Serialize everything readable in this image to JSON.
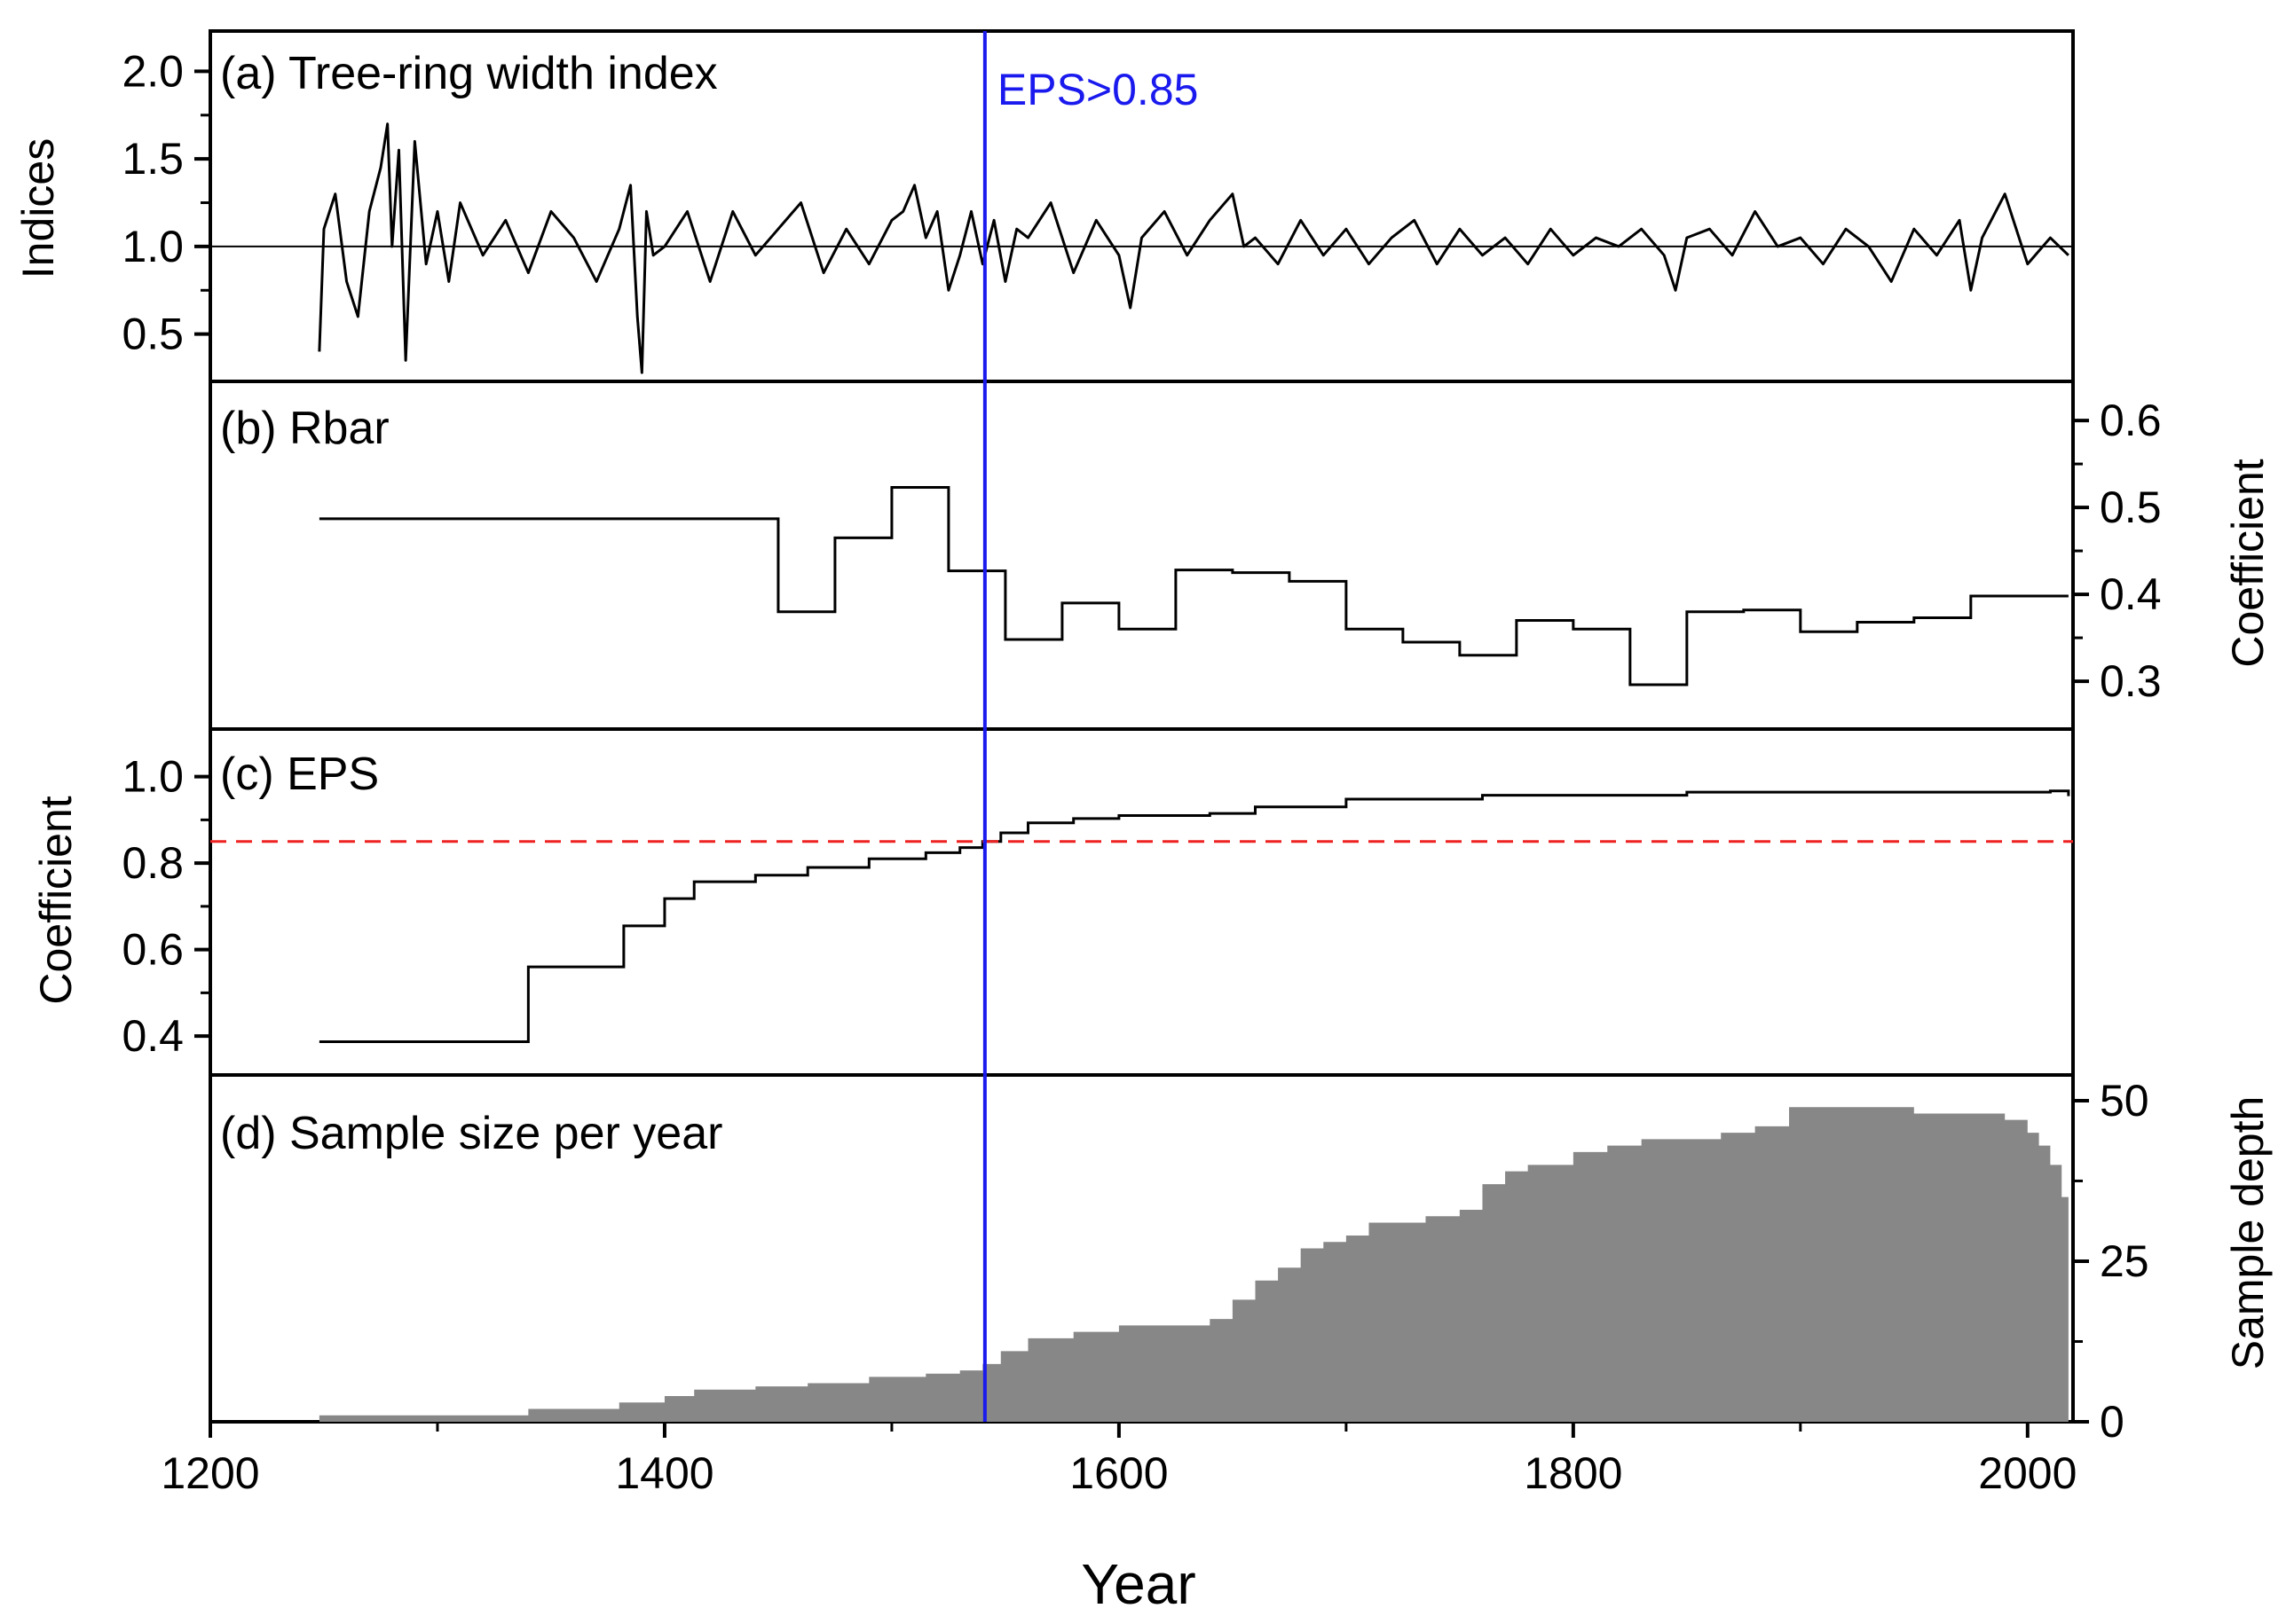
{
  "x_axis": {
    "title": "Year",
    "ticks": [
      "1200",
      "1400",
      "1600",
      "1800",
      "2000"
    ]
  },
  "eps_marker": {
    "year": 1541,
    "label": "EPS>0.85",
    "color": "#1a1aee"
  },
  "panels": {
    "a": {
      "label": "(a) Tree-ring width index",
      "ylabel": "Indices",
      "ticks": [
        "0.5",
        "1.0",
        "1.5",
        "2.0"
      ]
    },
    "b": {
      "label": "(b) Rbar",
      "ylabel": "Coefficient",
      "ticks": [
        "0.3",
        "0.4",
        "0.5",
        "0.6"
      ]
    },
    "c": {
      "label": "(c) EPS",
      "ylabel": "Coefficient",
      "ticks": [
        "0.4",
        "0.6",
        "0.8",
        "1.0"
      ]
    },
    "d": {
      "label": "(d) Sample size per year",
      "ylabel": "Sample depth",
      "ticks": [
        "0",
        "25",
        "50"
      ]
    }
  },
  "chart_data": [
    {
      "type": "line",
      "panel": "a",
      "title": "(a) Tree-ring width index",
      "ylabel": "Indices",
      "xlabel": "Year",
      "xlim": [
        1200,
        2020
      ],
      "ylim": [
        0.23,
        2.23
      ],
      "reference_line": 1.0,
      "line_color": "#000000",
      "x": [
        1248,
        1250,
        1255,
        1260,
        1265,
        1270,
        1275,
        1278,
        1280,
        1283,
        1286,
        1290,
        1295,
        1300,
        1305,
        1310,
        1320,
        1330,
        1340,
        1350,
        1360,
        1370,
        1380,
        1385,
        1388,
        1390,
        1392,
        1395,
        1400,
        1410,
        1420,
        1430,
        1440,
        1450,
        1460,
        1470,
        1480,
        1490,
        1500,
        1505,
        1510,
        1515,
        1520,
        1525,
        1530,
        1535,
        1540,
        1545,
        1550,
        1555,
        1560,
        1570,
        1580,
        1590,
        1600,
        1605,
        1610,
        1620,
        1630,
        1640,
        1650,
        1655,
        1660,
        1670,
        1680,
        1690,
        1700,
        1710,
        1720,
        1730,
        1740,
        1750,
        1760,
        1770,
        1780,
        1790,
        1800,
        1810,
        1820,
        1830,
        1840,
        1845,
        1850,
        1860,
        1870,
        1880,
        1890,
        1900,
        1910,
        1920,
        1930,
        1940,
        1950,
        1960,
        1970,
        1975,
        1980,
        1990,
        2000,
        2010,
        2018
      ],
      "y": [
        0.4,
        1.1,
        1.3,
        0.8,
        0.6,
        1.2,
        1.45,
        1.7,
        1.0,
        1.55,
        0.35,
        1.6,
        0.9,
        1.2,
        0.8,
        1.25,
        0.95,
        1.15,
        0.85,
        1.2,
        1.05,
        0.8,
        1.1,
        1.35,
        0.6,
        0.28,
        1.2,
        0.95,
        1.0,
        1.2,
        0.8,
        1.2,
        0.95,
        1.1,
        1.25,
        0.85,
        1.1,
        0.9,
        1.15,
        1.2,
        1.35,
        1.05,
        1.2,
        0.75,
        0.95,
        1.2,
        0.9,
        1.15,
        0.8,
        1.1,
        1.05,
        1.25,
        0.85,
        1.15,
        0.95,
        0.65,
        1.05,
        1.2,
        0.95,
        1.15,
        1.3,
        1.0,
        1.05,
        0.9,
        1.15,
        0.95,
        1.1,
        0.9,
        1.05,
        1.15,
        0.9,
        1.1,
        0.95,
        1.05,
        0.9,
        1.1,
        0.95,
        1.05,
        1.0,
        1.1,
        0.95,
        0.75,
        1.05,
        1.1,
        0.95,
        1.2,
        1.0,
        1.05,
        0.9,
        1.1,
        1.0,
        0.8,
        1.1,
        0.95,
        1.15,
        0.75,
        1.05,
        1.3,
        0.9,
        1.05,
        0.95
      ]
    },
    {
      "type": "line",
      "panel": "b",
      "title": "(b) Rbar",
      "ylabel": "Coefficient",
      "xlabel": "Year",
      "xlim": [
        1200,
        2020
      ],
      "ylim": [
        0.245,
        0.645
      ],
      "step": true,
      "line_color": "#000000",
      "x": [
        1248,
        1450,
        1475,
        1500,
        1525,
        1550,
        1575,
        1600,
        1625,
        1650,
        1675,
        1700,
        1725,
        1750,
        1775,
        1800,
        1825,
        1850,
        1875,
        1900,
        1925,
        1950,
        1975,
        2018
      ],
      "y": [
        0.487,
        0.38,
        0.465,
        0.523,
        0.427,
        0.348,
        0.39,
        0.36,
        0.428,
        0.425,
        0.415,
        0.36,
        0.345,
        0.33,
        0.37,
        0.36,
        0.296,
        0.38,
        0.382,
        0.357,
        0.368,
        0.373,
        0.398,
        0.398
      ]
    },
    {
      "type": "line",
      "panel": "c",
      "title": "(c) EPS",
      "ylabel": "Coefficient",
      "xlabel": "Year",
      "xlim": [
        1200,
        2020
      ],
      "ylim": [
        0.31,
        1.11
      ],
      "step": true,
      "threshold": 0.85,
      "threshold_color": "#ee2222",
      "line_color": "#000000",
      "x": [
        1248,
        1340,
        1382,
        1400,
        1413,
        1440,
        1463,
        1490,
        1515,
        1530,
        1540,
        1548,
        1560,
        1580,
        1600,
        1640,
        1660,
        1700,
        1760,
        1850,
        2010,
        2018
      ],
      "y": [
        0.387,
        0.56,
        0.655,
        0.718,
        0.757,
        0.772,
        0.79,
        0.81,
        0.824,
        0.836,
        0.85,
        0.87,
        0.893,
        0.903,
        0.91,
        0.915,
        0.93,
        0.948,
        0.957,
        0.964,
        0.967,
        0.955
      ]
    },
    {
      "type": "area",
      "panel": "d",
      "title": "(d) Sample size per year",
      "ylabel": "Sample depth",
      "xlabel": "Year",
      "xlim": [
        1200,
        2020
      ],
      "ylim": [
        0,
        54
      ],
      "step": true,
      "fill_color": "#878787",
      "x": [
        1248,
        1340,
        1380,
        1400,
        1413,
        1440,
        1463,
        1490,
        1515,
        1530,
        1540,
        1548,
        1560,
        1580,
        1600,
        1640,
        1650,
        1660,
        1670,
        1680,
        1690,
        1700,
        1710,
        1720,
        1735,
        1750,
        1760,
        1770,
        1780,
        1800,
        1815,
        1830,
        1850,
        1865,
        1880,
        1895,
        1950,
        1990,
        2000,
        2005,
        2010,
        2015,
        2018
      ],
      "y": [
        1,
        2,
        3,
        4,
        5,
        5.5,
        6,
        7,
        7.5,
        8,
        9,
        11,
        13,
        14,
        15,
        16,
        19,
        22,
        24,
        27,
        28,
        29,
        31,
        31,
        32,
        33,
        37,
        39,
        40,
        42,
        43,
        44,
        44,
        45,
        46,
        49,
        48,
        47,
        45,
        43,
        40,
        35,
        30
      ]
    }
  ]
}
